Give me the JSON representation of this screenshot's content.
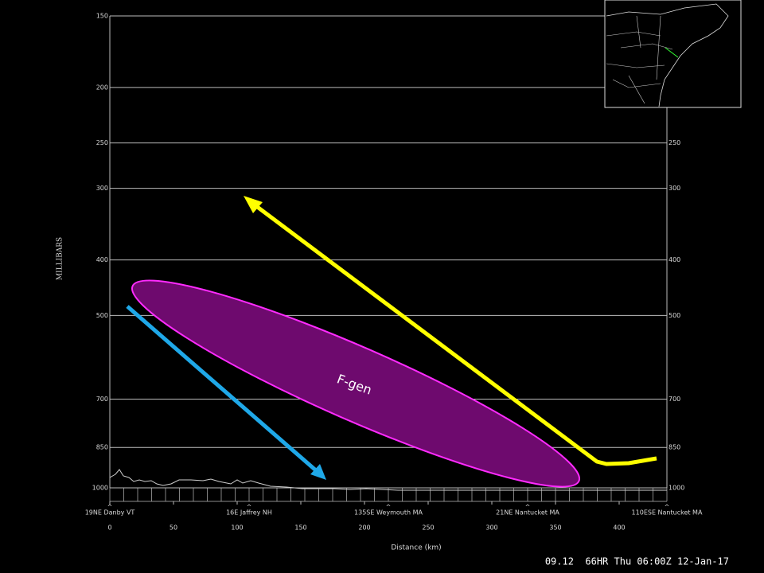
{
  "chart_data": {
    "type": "cross-section",
    "ylabel": "MILLIBARS",
    "xlabel": "Distance (km)",
    "ylim": [
      1000,
      150
    ],
    "yscale": "log",
    "yticks": [
      150,
      200,
      250,
      300,
      400,
      500,
      700,
      850,
      1000
    ],
    "xlim": [
      0,
      437.5
    ],
    "xticks": [
      0,
      50,
      100,
      150,
      200,
      250,
      300,
      350,
      400
    ],
    "locations": [
      "19NE Danby VT",
      "16E Jaffrey NH",
      "135SE Weymouth MA",
      "21NE Nantucket MA",
      "110ESE Nantucket MA"
    ],
    "grid": true,
    "annotation": "F-gen",
    "footer": "09.12  66HR Thu 06:00Z 12-Jan-17"
  }
}
